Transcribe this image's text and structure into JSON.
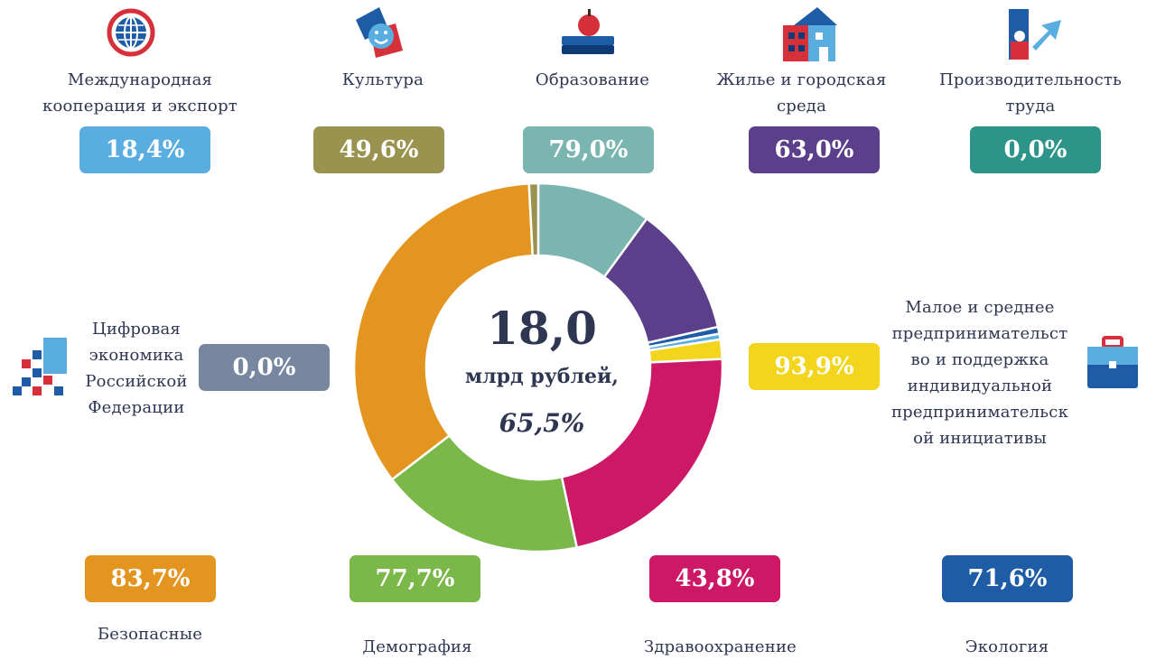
{
  "chart_data": {
    "type": "pie",
    "center": {
      "amount": "18,0",
      "unit": "млрд рублей,",
      "percent": "65,5%"
    },
    "categories": [
      {
        "key": "intl",
        "label": "Международная кооперация и экспорт",
        "percent": "18,4%",
        "color": "#5aade0"
      },
      {
        "key": "culture",
        "label": "Культура",
        "percent": "49,6%",
        "color": "#9a9350"
      },
      {
        "key": "education",
        "label": "Образование",
        "percent": "79,0%",
        "color": "#7ab5b0"
      },
      {
        "key": "housing",
        "label": "Жилье и городская среда",
        "percent": "63,0%",
        "color": "#5b3f8a"
      },
      {
        "key": "labor",
        "label": "Производительность труда",
        "percent": "0,0%",
        "color": "#2d9489"
      },
      {
        "key": "digital",
        "label": "Цифровая экономика Российской Федерации",
        "percent": "0,0%",
        "color": "#76879f"
      },
      {
        "key": "sme",
        "label": "Малое и среднее предпринимательство и поддержка индивидуальной предпринимательской инициативы",
        "percent": "93,9%",
        "color": "#f2d51c"
      },
      {
        "key": "roads",
        "label": "Безопасные",
        "percent": "83,7%",
        "color": "#e39520"
      },
      {
        "key": "demography",
        "label": "Демография",
        "percent": "77,7%",
        "color": "#7bb84a"
      },
      {
        "key": "health",
        "label": "Здравоохранение",
        "percent": "43,8%",
        "color": "#cc1866"
      },
      {
        "key": "ecology",
        "label": "Экология",
        "percent": "71,6%",
        "color": "#1e5da5"
      }
    ],
    "slices": [
      {
        "key": "education",
        "share": 10.0,
        "color": "#7ab5b0"
      },
      {
        "key": "housing",
        "share": 11.4,
        "color": "#5b3f8a"
      },
      {
        "key": "ecology",
        "share": 0.6,
        "color": "#1e5da5"
      },
      {
        "key": "intl",
        "share": 0.5,
        "color": "#5aade0"
      },
      {
        "key": "sme",
        "share": 1.7,
        "color": "#f2d51c"
      },
      {
        "key": "health",
        "share": 22.3,
        "color": "#cc1866"
      },
      {
        "key": "demography",
        "share": 17.9,
        "color": "#7bb84a"
      },
      {
        "key": "roads",
        "share": 34.5,
        "color": "#e39520"
      },
      {
        "key": "culture",
        "share": 0.8,
        "color": "#9a9350"
      }
    ]
  },
  "labels": {
    "intl": [
      "Международная",
      "кооперация и экспорт"
    ],
    "culture": [
      "Культура"
    ],
    "education": [
      "Образование"
    ],
    "housing": [
      "Жилье и городская",
      "среда"
    ],
    "labor": [
      "Производительность",
      "труда"
    ],
    "digital": [
      "Цифровая",
      "экономика",
      "Российской",
      "Федерации"
    ],
    "sme": [
      "Малое и среднее",
      "предпринимательст",
      "во и поддержка",
      "индивидуальной",
      "предпринимательск",
      "ой инициативы"
    ],
    "roads": [
      "Безопасные"
    ],
    "demography": [
      "Демография"
    ],
    "health": [
      "Здравоохранение"
    ],
    "ecology": [
      "Экология"
    ]
  },
  "icons": {
    "intl": "globe-icon",
    "culture": "theater-mask-icon",
    "education": "books-apple-icon",
    "housing": "house-icon",
    "labor": "growth-arrow-icon",
    "digital": "pixel-grid-icon",
    "sme": "briefcase-icon"
  }
}
